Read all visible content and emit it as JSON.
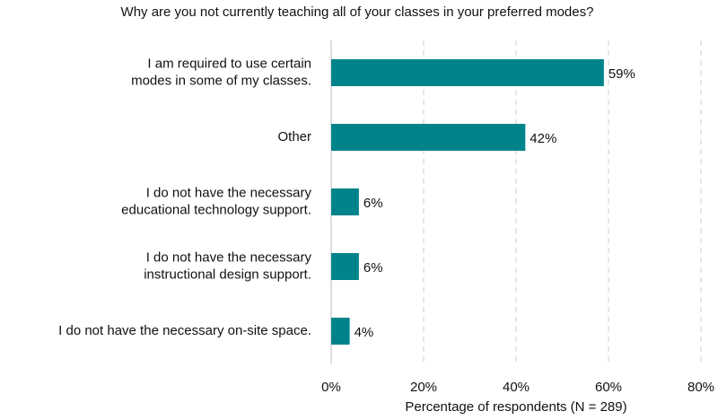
{
  "chart_data": {
    "type": "hbar",
    "title": "Why are you not currently teaching all of your classes in your preferred modes?",
    "x_label": "Percentage of respondents (N = 289)",
    "categories": [
      "I am required to use certain\nmodes in some of my classes.",
      "Other",
      "I do not have the necessary\neducational technology support.",
      "I do not have the necessary\ninstructional design support.",
      "I do not have the necessary on-site space."
    ],
    "values": [
      59,
      42,
      6,
      6,
      4
    ],
    "value_labels": [
      "59%",
      "42%",
      "6%",
      "6%",
      "4%"
    ],
    "color": "#00838a",
    "xlim": [
      0,
      80
    ],
    "xticks": [
      {
        "value": 0,
        "label": "0%"
      },
      {
        "value": 20,
        "label": "20%"
      },
      {
        "value": 40,
        "label": "40%"
      },
      {
        "value": 60,
        "label": "60%"
      },
      {
        "value": 80,
        "label": "80%"
      }
    ],
    "grid": true
  }
}
